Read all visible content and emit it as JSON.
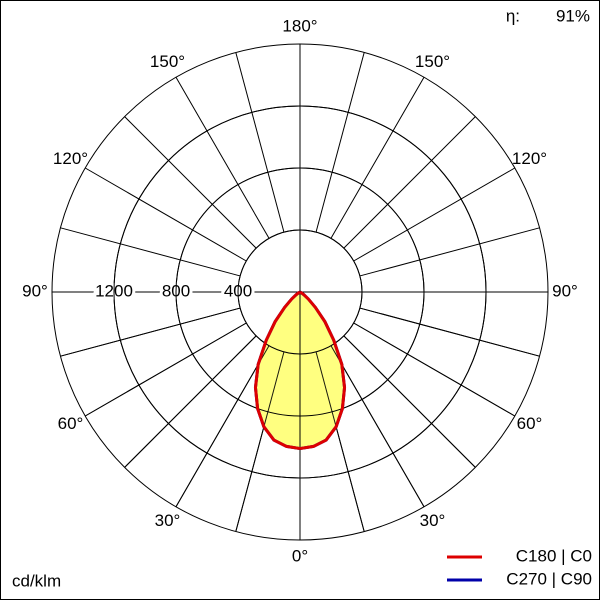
{
  "chart_data": {
    "type": "polar",
    "efficiency_label": "η:",
    "efficiency": "91%",
    "unit": "cd/klm",
    "x": [
      0,
      5,
      10,
      15,
      20,
      25,
      30,
      35,
      40,
      45,
      50,
      55,
      60,
      65,
      70,
      75,
      80,
      85,
      90
    ],
    "series": [
      {
        "name": "C270 | C90",
        "color": "#0000aa",
        "values": [
          1010,
          1000,
          970,
          900,
          800,
          680,
          540,
          380,
          250,
          140,
          70,
          30,
          10,
          0,
          0,
          0,
          0,
          0,
          0
        ]
      },
      {
        "name": "C180 | C0",
        "color": "#dd0000",
        "values": [
          1010,
          1000,
          970,
          900,
          800,
          680,
          540,
          380,
          250,
          140,
          70,
          30,
          10,
          0,
          0,
          0,
          0,
          0,
          0
        ]
      }
    ],
    "fill_color": "#ffff80",
    "rlim": [
      0,
      1600
    ],
    "rticks": [
      400,
      800,
      1200
    ],
    "angle_ticks": [
      {
        "value": 180,
        "label": "180°"
      },
      {
        "value": 150,
        "label": "150°"
      },
      {
        "value": 120,
        "label": "120°"
      },
      {
        "value": 90,
        "label": "90°"
      },
      {
        "value": 60,
        "label": "60°"
      },
      {
        "value": 30,
        "label": "30°"
      },
      {
        "value": 0,
        "label": "0°"
      }
    ],
    "spoke_step": 15
  }
}
